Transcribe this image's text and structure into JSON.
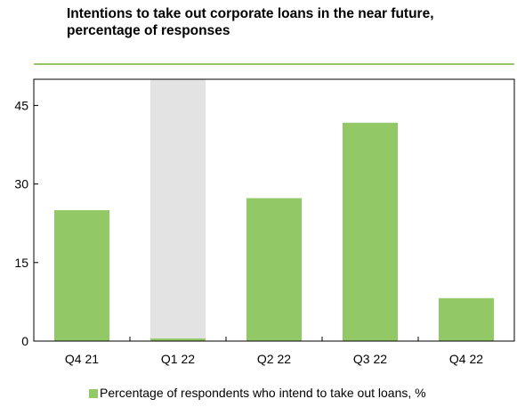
{
  "chart_data": {
    "type": "bar",
    "title": "Intentions to take out corporate loans in the near future, percentage of responses",
    "categories": [
      "Q4 21",
      "Q1 22",
      "Q2 22",
      "Q3 22",
      "Q4 22"
    ],
    "series": [
      {
        "name": "Percentage of respondents who intend to take out loans, %",
        "values": [
          25.0,
          0.5,
          27.3,
          41.7,
          8.2
        ],
        "color": "#92c966"
      }
    ],
    "highlighted_category": "Q1 22",
    "highlight_color": "#e3e3e3",
    "ylim": [
      0,
      50
    ],
    "yticks": [
      0,
      15,
      30,
      45
    ],
    "xlabel": "",
    "ylabel": "",
    "grid": false,
    "legend_position": "bottom"
  }
}
